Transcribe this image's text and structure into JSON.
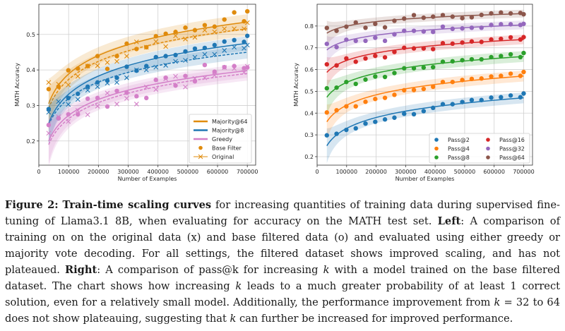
{
  "figure": {
    "label": "Figure 2:",
    "title_bold": "Train-time scaling curves",
    "caption_parts": {
      "p1": " for increasing quantities of training data during supervised fine-tuning of Llama3.1 8B, when evaluating for accuracy on the MATH test set. ",
      "left_label": "Left",
      "p2": ": A comparison of training on on the original data (x) and base filtered data (o) and evaluated using either greedy or majority vote decoding. For all settings, the filtered dataset shows improved scaling, and has not plateaued. ",
      "right_label": "Right",
      "p3": ": A comparison of pass@k for increasing ",
      "k1": "k",
      "p4": " with a model trained on the base filtered dataset. The chart shows how increasing ",
      "k2": "k",
      "p5": " leads to a much greater probability of at least 1 correct solution, even for a relatively small model. Additionally, the performance improvement from ",
      "k3": "k",
      "p6": " = 32 to 64 does not show plateauing, suggesting that ",
      "k4": "k",
      "p7": " can further be increased for improved performance."
    }
  },
  "chart_data": [
    {
      "type": "scatter",
      "title": "",
      "xlabel": "Number of Examples",
      "ylabel": "MATH Accuracy",
      "xlim": [
        0,
        728000
      ],
      "ylim": [
        0.132,
        0.585
      ],
      "xticks": [
        0,
        100000,
        200000,
        300000,
        400000,
        500000,
        600000,
        700000
      ],
      "xtick_labels": [
        "0",
        "100000",
        "200000",
        "300000",
        "400000",
        "500000",
        "600000",
        "700000"
      ],
      "yticks": [
        0.2,
        0.3,
        0.4,
        0.5
      ],
      "ytick_labels": [
        "0.2",
        "0.3",
        "0.4",
        "0.5"
      ],
      "grid": true,
      "legend_position": "bottom-right",
      "legend": [
        {
          "label": "Majority@64",
          "kind": "line",
          "color": "#e08b0c"
        },
        {
          "label": "Majority@8",
          "kind": "line",
          "color": "#1f77b4"
        },
        {
          "label": "Greedy",
          "kind": "line",
          "color": "#d47fc8"
        },
        {
          "label": "Base Filter",
          "kind": "dot",
          "color": "#e08b0c"
        },
        {
          "label": "Original",
          "kind": "cross-line",
          "color": "#e08b0c"
        }
      ],
      "x": [
        33000,
        66000,
        99000,
        131000,
        164000,
        197000,
        230000,
        262000,
        295000,
        328000,
        361000,
        393000,
        426000,
        459000,
        492000,
        524000,
        557000,
        590000,
        623000,
        656000,
        689000,
        700000
      ],
      "series": [
        {
          "name": "Majority@64 (Base Filter)",
          "color": "#e08b0c",
          "marker": "dot",
          "values": [
            0.346,
            0.353,
            0.399,
            0.404,
            0.411,
            0.439,
            0.403,
            0.439,
            0.474,
            0.459,
            0.464,
            0.495,
            0.502,
            0.507,
            0.519,
            0.512,
            0.526,
            0.522,
            0.542,
            0.562,
            0.537,
            0.565
          ],
          "fit": {
            "style": "solid",
            "start": 0.305,
            "end": 0.535,
            "band": 0.022
          }
        },
        {
          "name": "Majority@64 (Original)",
          "color": "#e08b0c",
          "marker": "x",
          "values": [
            0.365,
            0.36,
            0.358,
            0.382,
            0.411,
            0.412,
            0.421,
            0.424,
            0.439,
            0.479,
            0.464,
            0.48,
            0.466,
            0.496,
            0.487,
            0.492,
            0.512,
            0.507,
            0.516,
            0.516,
            0.516,
            0.533
          ],
          "fit": {
            "style": "dashed",
            "start": 0.292,
            "end": 0.516,
            "band": 0.02
          }
        },
        {
          "name": "Majority@8 (Base Filter)",
          "color": "#1f77b4",
          "marker": "dot",
          "values": [
            0.29,
            0.264,
            0.321,
            0.333,
            0.353,
            0.365,
            0.37,
            0.378,
            0.409,
            0.398,
            0.411,
            0.436,
            0.439,
            0.442,
            0.452,
            0.46,
            0.462,
            0.47,
            0.48,
            0.484,
            0.479,
            0.496
          ],
          "fit": {
            "style": "solid",
            "start": 0.25,
            "end": 0.475,
            "band": 0.02
          }
        },
        {
          "name": "Majority@8 (Original)",
          "color": "#1f77b4",
          "marker": "x",
          "values": [
            0.281,
            0.311,
            0.303,
            0.317,
            0.343,
            0.353,
            0.363,
            0.365,
            0.378,
            0.4,
            0.4,
            0.408,
            0.413,
            0.424,
            0.427,
            0.436,
            0.444,
            0.444,
            0.455,
            0.464,
            0.461,
            0.47
          ],
          "fit": {
            "style": "dashed",
            "start": 0.245,
            "end": 0.45,
            "band": 0.018
          }
        },
        {
          "name": "Greedy (Base Filter)",
          "color": "#d47fc8",
          "marker": "dot",
          "values": [
            0.245,
            0.264,
            0.275,
            0.275,
            0.319,
            0.321,
            0.297,
            0.341,
            0.336,
            0.326,
            0.321,
            0.372,
            0.378,
            0.356,
            0.383,
            0.368,
            0.414,
            0.395,
            0.408,
            0.411,
            0.405,
            0.407
          ],
          "fit": {
            "style": "solid",
            "start": 0.2,
            "end": 0.398,
            "band": 0.02
          }
        },
        {
          "name": "Greedy (Original)",
          "color": "#d47fc8",
          "marker": "x",
          "values": [
            0.222,
            0.268,
            0.255,
            0.286,
            0.274,
            0.298,
            0.335,
            0.304,
            0.32,
            0.304,
            0.352,
            0.345,
            0.375,
            0.382,
            0.352,
            0.376,
            0.378,
            0.385,
            0.407,
            0.404,
            0.393,
            0.41
          ],
          "fit": {
            "style": "dashed",
            "start": 0.19,
            "end": 0.39,
            "band": 0.02
          }
        }
      ]
    },
    {
      "type": "scatter",
      "title": "",
      "xlabel": "Number of Examples",
      "ylabel": "MATH Accuracy",
      "xlim": [
        0,
        730000
      ],
      "ylim": [
        0.161,
        0.9
      ],
      "xticks": [
        0,
        100000,
        200000,
        300000,
        400000,
        500000,
        600000,
        700000
      ],
      "xtick_labels": [
        "0",
        "100000",
        "200000",
        "300000",
        "400000",
        "500000",
        "600000",
        "700000"
      ],
      "yticks": [
        0.2,
        0.3,
        0.4,
        0.5,
        0.6,
        0.7,
        0.8
      ],
      "ytick_labels": [
        "0.2",
        "0.3",
        "0.4",
        "0.5",
        "0.6",
        "0.7",
        "0.8"
      ],
      "grid": true,
      "legend_position": "bottom-right",
      "legend_columns": 2,
      "legend": [
        {
          "label": "Pass@2",
          "color": "#1f77b4"
        },
        {
          "label": "Pass@4",
          "color": "#ff7f0e"
        },
        {
          "label": "Pass@8",
          "color": "#2ca02c"
        },
        {
          "label": "Pass@16",
          "color": "#d62728"
        },
        {
          "label": "Pass@32",
          "color": "#9467bd"
        },
        {
          "label": "Pass@64",
          "color": "#8c564b"
        }
      ],
      "x": [
        33000,
        66000,
        99000,
        131000,
        164000,
        197000,
        230000,
        262000,
        295000,
        328000,
        361000,
        393000,
        426000,
        459000,
        492000,
        524000,
        557000,
        590000,
        623000,
        656000,
        689000,
        700000
      ],
      "series": [
        {
          "name": "Pass@2",
          "color": "#1f77b4",
          "values": [
            0.298,
            0.305,
            0.323,
            0.33,
            0.352,
            0.36,
            0.371,
            0.379,
            0.397,
            0.395,
            0.409,
            0.424,
            0.441,
            0.441,
            0.451,
            0.46,
            0.46,
            0.471,
            0.473,
            0.481,
            0.473,
            0.49
          ],
          "fit": {
            "start": 0.25,
            "end": 0.47,
            "band": 0.025
          }
        },
        {
          "name": "Pass@4",
          "color": "#ff7f0e",
          "values": [
            0.403,
            0.413,
            0.431,
            0.431,
            0.452,
            0.465,
            0.47,
            0.484,
            0.505,
            0.506,
            0.511,
            0.521,
            0.543,
            0.543,
            0.552,
            0.557,
            0.559,
            0.568,
            0.571,
            0.581,
            0.571,
            0.589
          ],
          "fit": {
            "start": 0.36,
            "end": 0.57,
            "band": 0.025
          }
        },
        {
          "name": "Pass@8",
          "color": "#2ca02c",
          "values": [
            0.514,
            0.517,
            0.543,
            0.534,
            0.554,
            0.568,
            0.566,
            0.584,
            0.606,
            0.606,
            0.609,
            0.611,
            0.636,
            0.638,
            0.643,
            0.647,
            0.647,
            0.657,
            0.662,
            0.67,
            0.657,
            0.676
          ],
          "fit": {
            "start": 0.473,
            "end": 0.66,
            "band": 0.025
          }
        },
        {
          "name": "Pass@16",
          "color": "#d62728",
          "values": [
            0.624,
            0.619,
            0.651,
            0.636,
            0.651,
            0.663,
            0.656,
            0.681,
            0.7,
            0.697,
            0.697,
            0.694,
            0.721,
            0.719,
            0.724,
            0.729,
            0.727,
            0.738,
            0.741,
            0.748,
            0.738,
            0.749
          ],
          "fit": {
            "start": 0.587,
            "end": 0.738,
            "band": 0.022
          }
        },
        {
          "name": "Pass@32",
          "color": "#9467bd",
          "values": [
            0.718,
            0.703,
            0.737,
            0.732,
            0.732,
            0.746,
            0.732,
            0.762,
            0.778,
            0.778,
            0.775,
            0.773,
            0.797,
            0.787,
            0.789,
            0.792,
            0.792,
            0.805,
            0.808,
            0.808,
            0.805,
            0.81
          ],
          "fit": {
            "start": 0.69,
            "end": 0.805,
            "band": 0.02
          }
        },
        {
          "name": "Pass@64",
          "color": "#8c564b",
          "values": [
            0.791,
            0.778,
            0.797,
            0.816,
            0.792,
            0.81,
            0.794,
            0.824,
            0.834,
            0.85,
            0.838,
            0.843,
            0.85,
            0.843,
            0.836,
            0.84,
            0.851,
            0.858,
            0.862,
            0.858,
            0.86,
            0.854
          ],
          "fit": {
            "start": 0.767,
            "end": 0.857,
            "band": 0.018
          }
        }
      ]
    }
  ]
}
